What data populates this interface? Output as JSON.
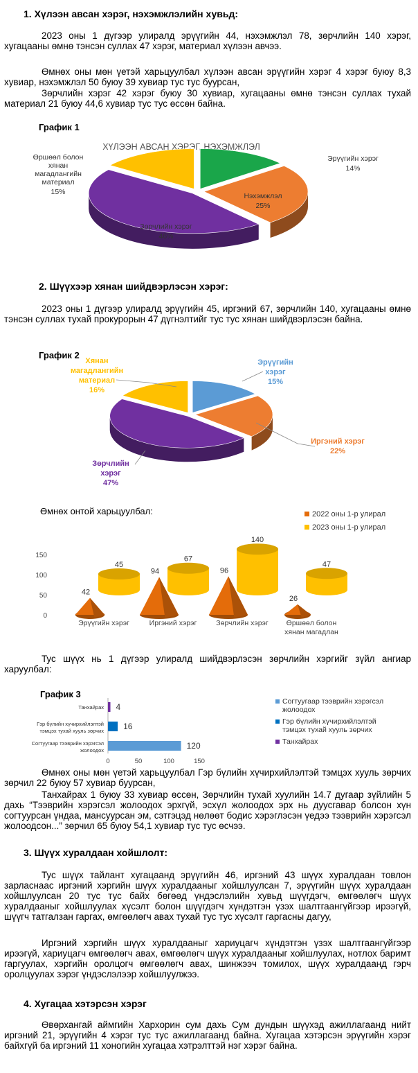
{
  "sections": {
    "s1": {
      "title": "1.  Хүлээн авсан хэрэг, нэхэмжлэлийн хувьд:",
      "p1": "2023 оны 1 дүгээр улиралд эрүүгийн 44, нэхэмжлэл 78, зөрчлийн 140 хэрэг, хугацааны өмнө тэнсэн суллах 47 хэрэг, материал хүлээн авчээ.",
      "p2a": "Өмнөх оны мөн үетэй харьцуулбал хүлээн авсан эрүүгийн хэрэг 4 хэрэг буюу 8,3 хувиар, нэхэмжлэл 50 буюу 39 хувиар тус тус буурсан,",
      "p2b": "Зөрчлийн хэрэг 42 хэрэг буюу 30 хувиар, хугацааны өмнө тэнсэн суллах тухай материал 21 буюу 44,6 хувиар тус тус өссөн байна."
    },
    "s2": {
      "title": "2.  Шүүхээр хянан шийдвэрлэсэн хэрэг:",
      "p1": "2023 оны 1 дүгээр улиралд эрүүгийн 45, иргэний 67, зөрчлийн 140, хугацааны өмнө тэнсэн суллах тухай прокурорын 47 дүгнэлтийг тус тус хянан шийдвэрлэсэн байна.",
      "compare": "Өмнөх онтой харьцуулбал:",
      "p2": "Тус шүүх нь 1 дүгээр улиралд шийдвэрлэсэн зөрчлийн хэргийг зүйл ангиар харуулбал:",
      "p3a": "Өмнөх оны мөн үетэй харьцуулбал Гэр бүлийн хүчирхийлэлтэй тэмцэх хууль зөрчих зөрчил 22 буюу 57 хувиар буурсан,",
      "p3b": "Танхайрах 1 буюу 33 хувиар өссөн, Зөрчлийн тухай хуулийн 14.7 дугаар зүйлийн 5 дахь “Тээврийн хэрэгсэл жолоодох эрхгүй, эсхүл жолоодох эрх нь дуусгавар болсон хүн согтуурсан үндаа, мансуурсан эм, сэтгэцэд нөлөөт бодис хэрэглэсэн үедээ тээврийн хэрэгсэл жолоодсон...” зөрчил 65 буюу 54,1 хувиар тус тус өсчээ."
    },
    "s3": {
      "title": "3.  Шүүх хуралдаан хойшлолт:",
      "p1": "Тус шүүх тайлант хугацаанд эрүүгийн 46, иргэний 43 шүүх хуралдаан товлон зарласнаас иргэний хэргийн шүүх хуралдааныг хойшлуулсан 7, эрүүгийн шүүх хуралдаан хойшлуулсан 20 тус тус байх бөгөөд үндэслэлийн хувьд шүүгдэгч, өмгөөлөгч шүүх хуралдааныг хойшлуулах хүсэлт болон шүүгдэгч хүндэтгэн үзэх шалтгаангүйгээр ирээгүй, шүүгч татгалзан гаргах, өмгөөлөгч авах тухай тус тус хүсэлт гаргасны дагуу,",
      "p2": "Иргэний хэргийн шүүх хуралдааныг хариуцагч хүндэтгэн үзэх шалтгаангүйгээр ирээгүй, хариуцагч өмгөөлөгч авах, өмгөөлөгч шүүх хуралдааныг хойшлуулах, нотлох баримт гаргуулах, хэргийн оролцогч өмгөөлөгч авах, шинжээч томилох, шүүх хуралдаанд гэрч оролцуулах зэрэг үндэслэлээр хойшлуулжээ."
    },
    "s4": {
      "title": "4.  Хугацаа хэтэрсэн хэрэг",
      "p1": "Өвөрхангай аймгийн Хархорин сум дахь Сум дундын шүүхэд ажиллагаанд нийт иргэний 21, эрүүгийн 4 хэрэг тус тус ажиллагаанд байна. Хугацаа хэтэрсэн эрүүгийн хэрэг байхгүй ба иргэний 11 хоногийн хугацаа хэтрэлттэй нэг хэрэг байна."
    }
  },
  "captions": {
    "g1": "График 1",
    "g2": "График 2",
    "g3": "График 3"
  },
  "chart_data": [
    {
      "id": "g1",
      "type": "pie",
      "title": "ХҮЛЭЭН АВСАН ХЭРЭГ, НЭХЭМЖЛЭЛ",
      "slices": [
        {
          "label": "Эрүүгийн хэрэг",
          "pct": "14%",
          "value": 14,
          "color": "#1aa64a"
        },
        {
          "label": "Нэхэмжлэл",
          "pct": "25%",
          "value": 25,
          "color": "#ed7d31"
        },
        {
          "label": "Зөрчлийн хэрэг",
          "pct": "46%",
          "value": 46,
          "color": "#7030a0"
        },
        {
          "label": "Өршөөл болон хянан магадлангийн материал",
          "pct": "15%",
          "value": 15,
          "color": "#ffc000"
        }
      ]
    },
    {
      "id": "g2",
      "type": "pie",
      "slices": [
        {
          "label": "Эрүүгийн хэрэг",
          "pct": "15%",
          "value": 15,
          "color": "#5b9bd5"
        },
        {
          "label": "Иргэний хэрэг",
          "pct": "22%",
          "value": 22,
          "color": "#ed7d31"
        },
        {
          "label": "Зөрчлийн хэрэг",
          "pct": "47%",
          "value": 47,
          "color": "#7030a0"
        },
        {
          "label": "Хянан магадлангийн материал",
          "pct": "16%",
          "value": 16,
          "color": "#ffc000"
        }
      ]
    },
    {
      "id": "cmp",
      "type": "bar",
      "categories": [
        "Эрүүгийн хэрэг",
        "Иргэний хэрэг",
        "Зөрчлийн хэрэг",
        "Өршөөл болон хянан магадлан"
      ],
      "series": [
        {
          "name": "2022 оны 1-р улирал",
          "values": [
            42,
            94,
            96,
            26
          ],
          "color": "#e46c0a"
        },
        {
          "name": "2023 оны 1-р улирал",
          "values": [
            45,
            67,
            140,
            47
          ],
          "color": "#ffc000"
        }
      ],
      "yticks": [
        "0",
        "50",
        "100",
        "150"
      ],
      "ylim": [
        0,
        150
      ]
    },
    {
      "id": "g3",
      "type": "bar",
      "orientation": "horizontal",
      "categories": [
        "Танхайрах",
        "Гэр бүлийн хүчирхийлэлтэй тэмцэх тухай хууль зөрчих",
        "Согтуугаар тээврийн хэрэгсэл жолоодох"
      ],
      "values": [
        4,
        16,
        120
      ],
      "colors": [
        "#7030a0",
        "#0070c0",
        "#5b9bd5"
      ],
      "xticks": [
        "0",
        "50",
        "100",
        "150"
      ],
      "xlim": [
        0,
        150
      ],
      "legend": [
        {
          "label": "Согтуугаар тээврийн хэрэгсэл жолоодох",
          "color": "#5b9bd5"
        },
        {
          "label": "Гэр бүлийн хүчирхийлэлтэй тэмцэх тухай хууль зөрчих",
          "color": "#0070c0"
        },
        {
          "label": "Танхайрах",
          "color": "#7030a0"
        }
      ]
    }
  ]
}
